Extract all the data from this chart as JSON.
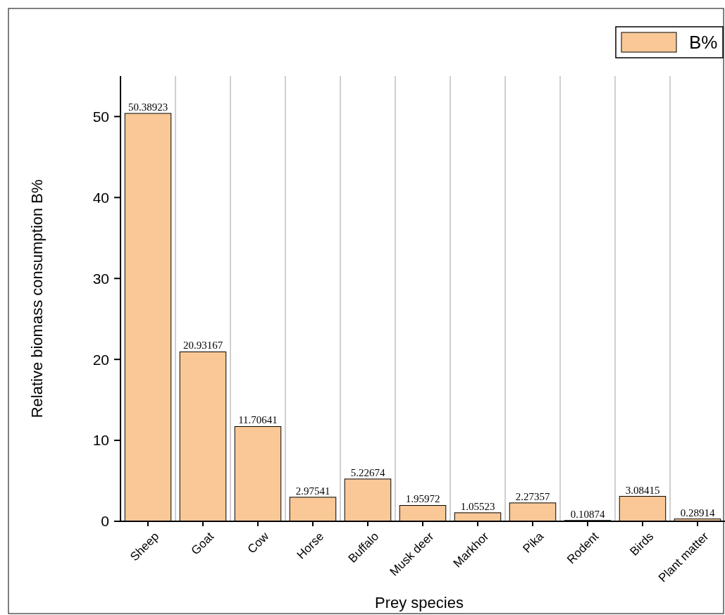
{
  "chart_data": {
    "type": "bar",
    "xlabel": "Prey species",
    "ylabel": "Relative biomass consumption B%",
    "categories": [
      "Sheep",
      "Goat",
      "Cow",
      "Horse",
      "Buffalo",
      "Musk deer",
      "Markhor",
      "Pika",
      "Rodent",
      "Birds",
      "Plant matter"
    ],
    "series": [
      {
        "name": "B%",
        "color": "#f9c896",
        "values": [
          50.38923,
          20.93167,
          11.70641,
          2.97541,
          5.22674,
          1.95972,
          1.05523,
          2.27357,
          0.10874,
          3.08415,
          0.28914
        ]
      }
    ],
    "ylim": [
      0,
      55
    ],
    "yticks": [
      0,
      10,
      20,
      30,
      40,
      50
    ],
    "grid": "x",
    "legend": "top right",
    "data_labels": true
  }
}
